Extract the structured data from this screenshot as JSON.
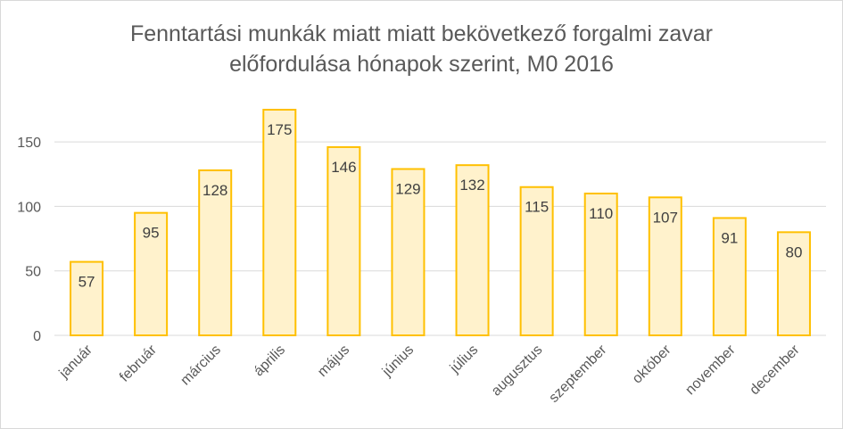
{
  "chart_data": {
    "type": "bar",
    "title_lines": [
      "Fenntartási munkák miatt miatt bekövetkező forgalmi zavar",
      "előfordulása hónapok szerint, M0 2016"
    ],
    "categories": [
      "január",
      "február",
      "március",
      "április",
      "május",
      "június",
      "július",
      "augusztus",
      "szeptember",
      "október",
      "november",
      "december"
    ],
    "values": [
      57,
      95,
      128,
      175,
      146,
      129,
      132,
      115,
      110,
      107,
      91,
      80
    ],
    "yticks": [
      0,
      50,
      100,
      150
    ],
    "ylim": [
      0,
      175
    ],
    "grid": true,
    "legend": "none",
    "bar_fill": "#fff2cc",
    "bar_stroke": "#ffc000",
    "grid_color": "#d9d9d9"
  }
}
